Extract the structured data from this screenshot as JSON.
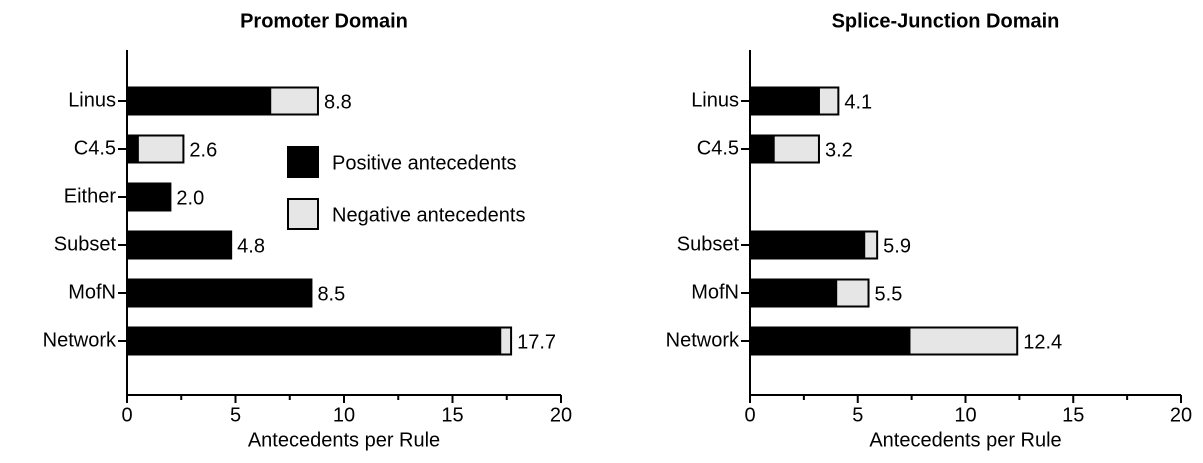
{
  "chart_data": [
    {
      "type": "bar",
      "orientation": "horizontal",
      "stacked": true,
      "title": "Promoter Domain",
      "x_label": "Antecedents per Rule",
      "categories": [
        "Linus",
        "C4.5",
        "Either",
        "Subset",
        "MofN",
        "Network"
      ],
      "series": [
        {
          "name": "Positive antecedents",
          "color": "#000000",
          "values": [
            6.6,
            0.5,
            2.0,
            4.8,
            8.5,
            17.2
          ]
        },
        {
          "name": "Negative antecedents",
          "color": "#e6e6e6",
          "values": [
            2.2,
            2.1,
            0,
            0,
            0,
            0.5
          ]
        }
      ],
      "total_labels": [
        "8.8",
        "2.6",
        "2.0",
        "4.8",
        "8.5",
        "17.7"
      ],
      "xlim": [
        0,
        20
      ],
      "xticks": [
        0,
        5,
        10,
        15,
        20
      ],
      "xminor": [
        2.5,
        7.5,
        12.5,
        17.5
      ],
      "legend": "center-right"
    },
    {
      "type": "bar",
      "orientation": "horizontal",
      "stacked": true,
      "title": "Splice-Junction Domain",
      "x_label": "Antecedents per Rule",
      "categories": [
        "Linus",
        "C4.5",
        null,
        "Subset",
        "MofN",
        "Network"
      ],
      "series": [
        {
          "color": "#000000",
          "values": [
            3.2,
            1.1,
            null,
            5.3,
            4.0,
            7.4
          ]
        },
        {
          "color": "#e6e6e6",
          "values": [
            0.9,
            2.1,
            null,
            0.6,
            1.5,
            5.0
          ]
        }
      ],
      "total_labels": [
        "4.1",
        "3.2",
        null,
        "5.9",
        "5.5",
        "12.4"
      ],
      "xlim": [
        0,
        20
      ],
      "xticks": [
        0,
        5,
        10,
        15,
        20
      ],
      "xminor": [
        2.5,
        7.5,
        12.5,
        17.5
      ]
    }
  ]
}
